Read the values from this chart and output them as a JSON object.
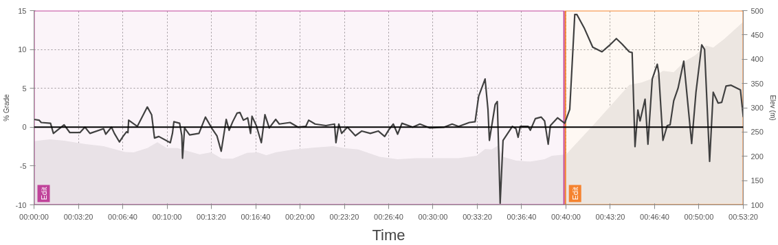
{
  "chart_data": {
    "type": "line",
    "xlabel": "Time",
    "ylabel": "% Grade",
    "y2label": "Elev (m)",
    "xlim": [
      0,
      0.8889
    ],
    "ylim": [
      -10,
      15
    ],
    "y2lim": [
      100,
      500
    ],
    "xticks": [
      {
        "value": 0,
        "label": "00:00:00"
      },
      {
        "value": 0.0556,
        "label": "00:03:20"
      },
      {
        "value": 0.1111,
        "label": "00:06:40"
      },
      {
        "value": 0.1667,
        "label": "00:10:00"
      },
      {
        "value": 0.2222,
        "label": "00:13:20"
      },
      {
        "value": 0.2778,
        "label": "00:16:40"
      },
      {
        "value": 0.3333,
        "label": "00:20:00"
      },
      {
        "value": 0.3889,
        "label": "00:23:20"
      },
      {
        "value": 0.4444,
        "label": "00:26:40"
      },
      {
        "value": 0.5,
        "label": "00:30:00"
      },
      {
        "value": 0.5556,
        "label": "00:33:20"
      },
      {
        "value": 0.6111,
        "label": "00:36:40"
      },
      {
        "value": 0.6667,
        "label": "00:40:00"
      },
      {
        "value": 0.7222,
        "label": "00:43:20"
      },
      {
        "value": 0.7778,
        "label": "00:46:40"
      },
      {
        "value": 0.8333,
        "label": "00:50:00"
      },
      {
        "value": 0.8889,
        "label": "00:53:20"
      }
    ],
    "yticks": [
      -10,
      -5,
      0,
      5,
      10,
      15
    ],
    "y2ticks": [
      100,
      150,
      200,
      250,
      300,
      350,
      400,
      450,
      500
    ],
    "grid": true,
    "series": [
      {
        "type": "area",
        "axis": "y2",
        "color": "#ececec",
        "x": [
          0,
          0.0198,
          0.0377,
          0.0647,
          0.0872,
          0.1141,
          0.1249,
          0.142,
          0.1546,
          0.1663,
          0.1798,
          0.1923,
          0.2076,
          0.222,
          0.2355,
          0.249,
          0.2669,
          0.2804,
          0.2912,
          0.3029,
          0.3254,
          0.3523,
          0.3748,
          0.3883,
          0.4063,
          0.4332,
          0.4557,
          0.4782,
          0.5096,
          0.5321,
          0.5546,
          0.5653,
          0.5734,
          0.5815,
          0.5878,
          0.604,
          0.622,
          0.6399,
          0.6489,
          0.6669,
          0.6714,
          0.7029,
          0.746,
          0.7613,
          0.773,
          0.7882,
          0.8017,
          0.8152,
          0.8287,
          0.8422,
          0.8512,
          0.8646,
          0.8889
        ],
        "values": [
          231,
          235,
          232,
          225,
          221,
          209,
          208,
          217,
          229,
          217,
          217,
          211,
          204,
          208,
          195,
          195,
          207,
          208,
          202,
          208,
          214,
          218,
          221,
          217,
          214,
          199,
          194,
          196,
          196,
          196,
          201,
          215,
          214,
          222,
          199,
          191,
          189,
          194,
          201,
          204,
          212,
          268,
          347,
          352,
          359,
          376,
          373,
          395,
          408,
          428,
          424,
          441,
          477
        ]
      },
      {
        "color": "#404040",
        "x": [
          0,
          0.0063,
          0.009,
          0.0207,
          0.0243,
          0.0377,
          0.0449,
          0.0575,
          0.0638,
          0.0701,
          0.0872,
          0.0899,
          0.0971,
          0.1007,
          0.107,
          0.1115,
          0.1159,
          0.1177,
          0.1186,
          0.1294,
          0.142,
          0.1474,
          0.151,
          0.1564,
          0.1708,
          0.1735,
          0.1753,
          0.1825,
          0.1852,
          0.1861,
          0.1887,
          0.195,
          0.2067,
          0.2148,
          0.2238,
          0.2292,
          0.2346,
          0.2409,
          0.2445,
          0.249,
          0.2544,
          0.258,
          0.2624,
          0.2678,
          0.2714,
          0.2732,
          0.2786,
          0.2849,
          0.2894,
          0.2948,
          0.3029,
          0.3074,
          0.3209,
          0.3308,
          0.3406,
          0.3442,
          0.3523,
          0.3658,
          0.3766,
          0.3784,
          0.382,
          0.3856,
          0.3928,
          0.4027,
          0.4108,
          0.4215,
          0.4314,
          0.4395,
          0.4449,
          0.4503,
          0.4557,
          0.4611,
          0.4746,
          0.4836,
          0.4961,
          0.5141,
          0.524,
          0.5321,
          0.5456,
          0.5528,
          0.5573,
          0.5653,
          0.5689,
          0.5707,
          0.5779,
          0.5806,
          0.5842,
          0.5878,
          0.5995,
          0.604,
          0.6067,
          0.6094,
          0.6193,
          0.622,
          0.6283,
          0.6355,
          0.6399,
          0.6444,
          0.6471,
          0.6561,
          0.6651,
          0.6714,
          0.6777,
          0.6804,
          0.6894,
          0.7002,
          0.7118,
          0.7208,
          0.7298,
          0.737,
          0.746,
          0.7496,
          0.7532,
          0.7568,
          0.7595,
          0.7658,
          0.7694,
          0.7748,
          0.7811,
          0.7829,
          0.7882,
          0.7936,
          0.7972,
          0.8017,
          0.8071,
          0.8143,
          0.8242,
          0.8296,
          0.8368,
          0.8404,
          0.8467,
          0.8512,
          0.8574,
          0.8619,
          0.8673,
          0.8736,
          0.8853,
          0.8889
        ],
        "values": [
          1.0,
          0.9,
          0.6,
          0.5,
          -0.8,
          0.3,
          -0.7,
          -0.7,
          0.0,
          -0.8,
          -0.2,
          -0.9,
          0.0,
          -0.8,
          -1.9,
          -1.2,
          -0.6,
          -0.7,
          0.9,
          0.1,
          2.6,
          1.6,
          -1.4,
          -1.2,
          -2.0,
          -0.8,
          0.7,
          0.5,
          -1.1,
          -4.0,
          -0.1,
          -1.0,
          -0.8,
          1.3,
          -0.3,
          -1.1,
          -3.1,
          1.0,
          -0.4,
          0.7,
          1.8,
          1.9,
          0.9,
          1.2,
          -0.8,
          1.4,
          0.2,
          -2.0,
          1.6,
          -0.1,
          1.0,
          0.4,
          0.6,
          0.0,
          0.1,
          0.9,
          0.4,
          0.2,
          0.4,
          -2.0,
          0.4,
          -0.8,
          0.0,
          -1.1,
          -0.5,
          -0.8,
          -0.5,
          -1.2,
          -0.3,
          0.4,
          -0.9,
          0.5,
          0.0,
          0.4,
          -0.1,
          0.0,
          0.4,
          0.1,
          0.6,
          0.7,
          4.0,
          6.2,
          2.3,
          -1.7,
          2.9,
          3.3,
          -9.8,
          -1.7,
          0.1,
          -0.2,
          -1.3,
          0.1,
          0.1,
          -0.4,
          1.1,
          1.3,
          0.8,
          -2.2,
          0.2,
          1.2,
          0.5,
          2.3,
          14.5,
          14.5,
          12.8,
          10.3,
          9.7,
          10.5,
          11.4,
          10.7,
          9.7,
          9.6,
          -2.5,
          2.2,
          0.8,
          3.6,
          -2.2,
          6.2,
          8.1,
          7.0,
          -1.7,
          0.2,
          0.3,
          3.4,
          5.0,
          8.5,
          -2.1,
          4.5,
          10.6,
          10.0,
          -4.4,
          4.5,
          3.1,
          3.2,
          5.3,
          5.4,
          4.8,
          1.3
        ]
      }
    ],
    "ref_lines": [
      {
        "axis": "y",
        "value": 0,
        "color": "#000000"
      }
    ],
    "bands": [
      {
        "axis": "x",
        "from": 0,
        "to": 0.6642,
        "label": "Edit",
        "color": "#c0439a"
      },
      {
        "axis": "x",
        "from": 0.666,
        "to": 0.8889,
        "label": "Edit",
        "color": "#f5832f"
      }
    ]
  }
}
